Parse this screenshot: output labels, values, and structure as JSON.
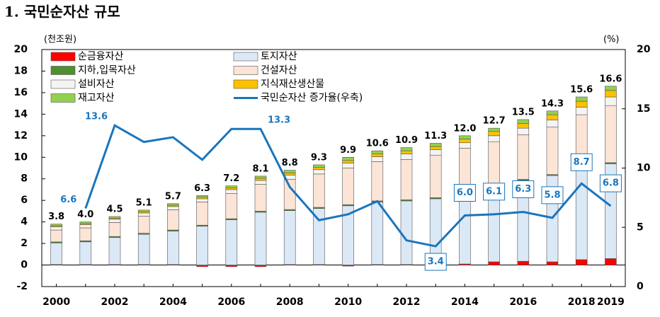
{
  "chart_data": {
    "type": "bar",
    "title": "1. 국민순자산 규모",
    "y_label": "(천조원)",
    "y2_label": "(%)",
    "categories": [
      "2000",
      null,
      "2002",
      null,
      "2004",
      null,
      "2006",
      null,
      "2008",
      null,
      "2010",
      null,
      "2012",
      null,
      "2014",
      null,
      "2016",
      null,
      "2018",
      "2019"
    ],
    "series": [
      {
        "name": "순금융자산",
        "color": "#ff0000",
        "values": [
          0.05,
          0.05,
          0.05,
          0.05,
          0.05,
          -0.15,
          -0.15,
          -0.15,
          0.05,
          0.05,
          -0.1,
          0.05,
          0.05,
          0.05,
          0.1,
          0.3,
          0.35,
          0.3,
          0.5,
          0.6
        ]
      },
      {
        "name": "지하,입목자산",
        "color": "#4e8f2f",
        "values": [
          0.1,
          0.1,
          0.1,
          0.1,
          0.1,
          0.1,
          0.1,
          0.1,
          0.1,
          0.1,
          0.1,
          0.1,
          0.1,
          0.1,
          0.1,
          0.1,
          0.1,
          0.1,
          0.1,
          0.1
        ]
      },
      {
        "name": "설비자산",
        "color": "#f4f4f4",
        "values": [
          0.3,
          0.3,
          0.3,
          0.3,
          0.3,
          0.3,
          0.35,
          0.35,
          0.4,
          0.4,
          0.45,
          0.45,
          0.5,
          0.5,
          0.5,
          0.55,
          0.6,
          0.65,
          0.7,
          0.8
        ]
      },
      {
        "name": "재고자산",
        "color": "#92d050",
        "values": [
          0.15,
          0.15,
          0.15,
          0.15,
          0.15,
          0.15,
          0.2,
          0.2,
          0.25,
          0.25,
          0.3,
          0.3,
          0.3,
          0.3,
          0.3,
          0.3,
          0.35,
          0.35,
          0.4,
          0.4
        ]
      },
      {
        "name": "토지자산",
        "color": "#dbe8f6",
        "values": [
          2.0,
          2.1,
          2.5,
          2.8,
          3.1,
          3.6,
          4.2,
          4.9,
          5.0,
          5.2,
          5.5,
          5.8,
          5.9,
          6.1,
          6.5,
          7.0,
          7.5,
          8.0,
          8.7,
          8.8
        ]
      },
      {
        "name": "건설자산",
        "color": "#fce4d6",
        "values": [
          1.1,
          1.2,
          1.3,
          1.58,
          1.88,
          2.15,
          2.35,
          2.5,
          2.8,
          3.1,
          3.4,
          3.65,
          3.75,
          3.95,
          4.15,
          4.05,
          4.15,
          4.4,
          4.65,
          5.3
        ]
      },
      {
        "name": "지식재산생산물",
        "color": "#ffc000",
        "values": [
          0.1,
          0.1,
          0.1,
          0.12,
          0.12,
          0.15,
          0.15,
          0.2,
          0.2,
          0.2,
          0.25,
          0.25,
          0.3,
          0.3,
          0.35,
          0.4,
          0.45,
          0.5,
          0.55,
          0.6
        ]
      },
      {
        "name": "국민순자산 증가율(우축)",
        "type": "line",
        "axis": "y2",
        "color": "#1a75bc",
        "values": [
          null,
          6.6,
          13.6,
          12.2,
          12.6,
          10.7,
          13.3,
          13.3,
          8.4,
          5.6,
          6.1,
          7.2,
          3.9,
          3.4,
          6.0,
          6.1,
          6.3,
          5.8,
          8.7,
          6.8
        ],
        "value_labels": [
          null,
          "6.6",
          "13.6",
          null,
          null,
          null,
          null,
          "13.3",
          null,
          null,
          null,
          null,
          null,
          "3.4",
          "6.0",
          "6.1",
          "6.3",
          "5.8",
          "8.7",
          "6.8"
        ]
      }
    ],
    "totals": [
      3.8,
      4.0,
      4.5,
      5.1,
      5.7,
      6.3,
      7.2,
      8.1,
      8.8,
      9.3,
      9.9,
      10.6,
      10.9,
      11.3,
      12.0,
      12.7,
      13.5,
      14.3,
      15.6,
      16.6
    ],
    "total_labels": [
      "3.8",
      "4.0",
      "4.5",
      "5.1",
      "5.7",
      "6.3",
      "7.2",
      "8.1",
      "8.8",
      "9.3",
      "9.9",
      "10.6",
      "10.9",
      "11.3",
      "12.0",
      "12.7",
      "13.5",
      "14.3",
      "15.6",
      "16.6"
    ],
    "ylim": [
      -2,
      20
    ],
    "yticks": [
      -2,
      0,
      2,
      4,
      6,
      8,
      10,
      12,
      14,
      16,
      18,
      20
    ],
    "y2lim": [
      0,
      20
    ],
    "y2ticks": [
      0,
      5,
      10,
      15,
      20
    ]
  }
}
